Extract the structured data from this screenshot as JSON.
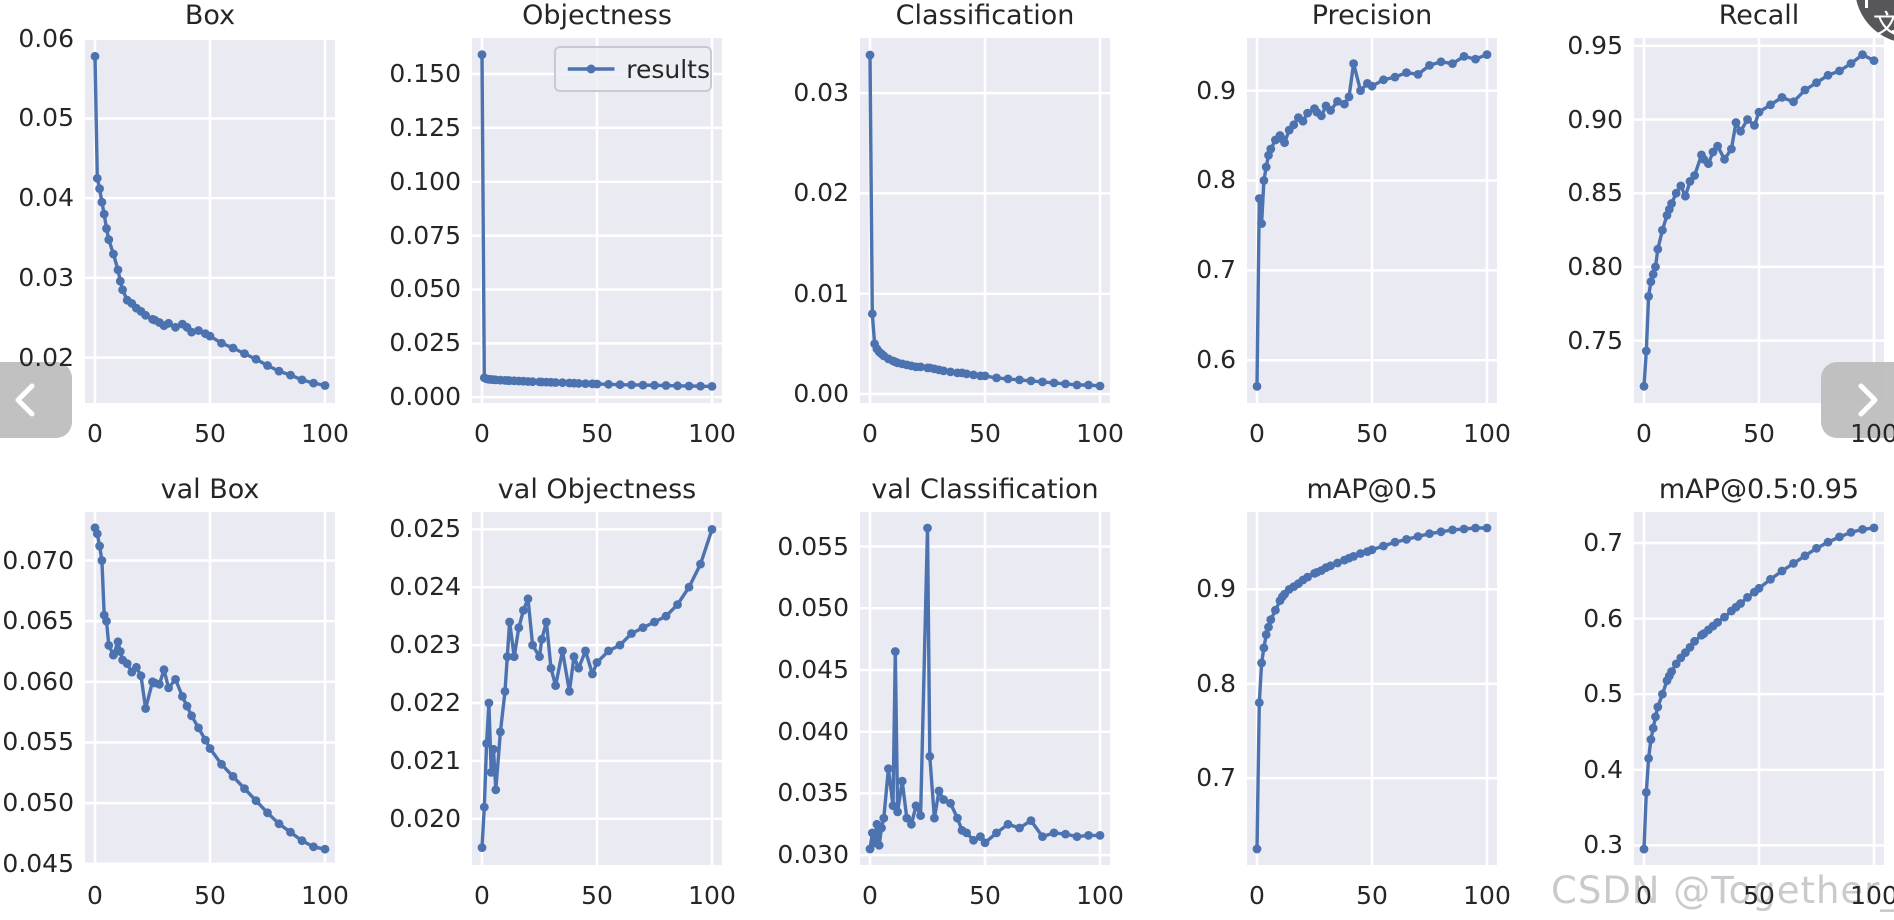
{
  "figure": {
    "kind": "training-results-grid",
    "rows": 2,
    "cols": 5
  },
  "colors": {
    "line": "#4c72b0",
    "plot_bg": "#eaeaf2",
    "grid": "#ffffff",
    "text": "#262626",
    "watermark": "#c1c1c4",
    "nav_bg": "#bcbcbc",
    "translate_bg": "#57575a"
  },
  "legend": {
    "label": "results"
  },
  "watermark": {
    "text": "CSDN @Together_CZ"
  },
  "nav": {
    "prev": "previous-image",
    "next": "next-image"
  },
  "translate_button": {
    "glyph": "文"
  },
  "chart_data": {
    "type": "line",
    "series_name": "results",
    "x_label_ticks": [
      "0",
      "50",
      "100"
    ],
    "x": [
      0,
      1,
      2,
      3,
      4,
      5,
      6,
      8,
      10,
      11,
      12,
      14,
      16,
      18,
      20,
      22,
      25,
      26,
      28,
      30,
      32,
      35,
      38,
      40,
      42,
      45,
      48,
      50,
      55,
      60,
      65,
      70,
      75,
      80,
      85,
      90,
      95,
      100
    ],
    "xticks": [
      0,
      50,
      100
    ],
    "xlim": [
      -4.35,
      104.35
    ],
    "plots": [
      {
        "title": "Box",
        "row": 0,
        "col": 0,
        "ylim": [
          0.0143,
          0.0601
        ],
        "yticks": [
          0.02,
          0.03,
          0.04,
          0.05,
          0.06
        ],
        "ytick_labels": [
          "0.02",
          "0.03",
          "0.04",
          "0.05",
          "0.06"
        ],
        "values": [
          0.0578,
          0.0425,
          0.0412,
          0.0395,
          0.038,
          0.0362,
          0.0348,
          0.033,
          0.031,
          0.0296,
          0.0285,
          0.0272,
          0.0268,
          0.0262,
          0.0258,
          0.0253,
          0.0248,
          0.0247,
          0.0244,
          0.024,
          0.0243,
          0.0238,
          0.0242,
          0.0238,
          0.0232,
          0.0234,
          0.023,
          0.0227,
          0.0218,
          0.0212,
          0.0205,
          0.0198,
          0.019,
          0.0183,
          0.0178,
          0.0172,
          0.0168,
          0.0165
        ]
      },
      {
        "title": "Objectness",
        "row": 0,
        "col": 1,
        "show_legend": true,
        "ylim": [
          -0.0027,
          0.1667
        ],
        "yticks": [
          0.0,
          0.025,
          0.05,
          0.075,
          0.1,
          0.125,
          0.15
        ],
        "ytick_labels": [
          "0.000",
          "0.025",
          "0.050",
          "0.075",
          "0.100",
          "0.125",
          "0.150"
        ],
        "values": [
          0.159,
          0.009,
          0.0085,
          0.0083,
          0.0082,
          0.0081,
          0.008,
          0.0079,
          0.0078,
          0.00775,
          0.0077,
          0.0076,
          0.0075,
          0.0074,
          0.0073,
          0.0072,
          0.0071,
          0.00705,
          0.007,
          0.0069,
          0.0068,
          0.0067,
          0.0066,
          0.0065,
          0.0064,
          0.0063,
          0.0062,
          0.0061,
          0.006,
          0.0058,
          0.0057,
          0.0056,
          0.0055,
          0.0054,
          0.0053,
          0.0052,
          0.0051,
          0.005
        ]
      },
      {
        "title": "Classification",
        "row": 0,
        "col": 2,
        "ylim": [
          -0.0009,
          0.0355
        ],
        "yticks": [
          0.0,
          0.01,
          0.02,
          0.03
        ],
        "ytick_labels": [
          "0.00",
          "0.01",
          "0.02",
          "0.03"
        ],
        "values": [
          0.0338,
          0.008,
          0.005,
          0.0045,
          0.0042,
          0.004,
          0.0038,
          0.0035,
          0.0033,
          0.0032,
          0.0031,
          0.003,
          0.0029,
          0.0028,
          0.0027,
          0.0027,
          0.0026,
          0.0026,
          0.0025,
          0.0024,
          0.0023,
          0.0022,
          0.0021,
          0.0021,
          0.002,
          0.0019,
          0.0018,
          0.0018,
          0.0016,
          0.0015,
          0.0014,
          0.0013,
          0.0012,
          0.0011,
          0.001,
          0.0009,
          0.0009,
          0.0008
        ]
      },
      {
        "title": "Precision",
        "row": 0,
        "col": 3,
        "ylim": [
          0.5525,
          0.9585
        ],
        "yticks": [
          0.6,
          0.7,
          0.8,
          0.9
        ],
        "ytick_labels": [
          "0.6",
          "0.7",
          "0.8",
          "0.9"
        ],
        "values": [
          0.571,
          0.78,
          0.752,
          0.8,
          0.815,
          0.828,
          0.835,
          0.845,
          0.85,
          0.846,
          0.842,
          0.856,
          0.862,
          0.87,
          0.866,
          0.875,
          0.88,
          0.876,
          0.872,
          0.883,
          0.878,
          0.888,
          0.885,
          0.893,
          0.93,
          0.9,
          0.908,
          0.905,
          0.912,
          0.915,
          0.92,
          0.918,
          0.928,
          0.932,
          0.93,
          0.938,
          0.935,
          0.94
        ]
      },
      {
        "title": "Recall",
        "row": 0,
        "col": 4,
        "ylim": [
          0.7077,
          0.9553
        ],
        "yticks": [
          0.75,
          0.8,
          0.85,
          0.9,
          0.95
        ],
        "ytick_labels": [
          "0.75",
          "0.80",
          "0.85",
          "0.90",
          "0.95"
        ],
        "values": [
          0.719,
          0.743,
          0.78,
          0.79,
          0.795,
          0.8,
          0.812,
          0.825,
          0.835,
          0.839,
          0.843,
          0.85,
          0.855,
          0.848,
          0.858,
          0.862,
          0.876,
          0.873,
          0.87,
          0.878,
          0.882,
          0.873,
          0.88,
          0.898,
          0.892,
          0.9,
          0.896,
          0.905,
          0.91,
          0.915,
          0.912,
          0.92,
          0.925,
          0.93,
          0.933,
          0.938,
          0.944,
          0.94
        ]
      },
      {
        "title": "val Box",
        "row": 1,
        "col": 0,
        "ylim": [
          0.0449,
          0.074
        ],
        "yticks": [
          0.045,
          0.05,
          0.055,
          0.06,
          0.065,
          0.07
        ],
        "ytick_labels": [
          "0.045",
          "0.050",
          "0.055",
          "0.060",
          "0.065",
          "0.070"
        ],
        "values": [
          0.0727,
          0.0722,
          0.0712,
          0.07,
          0.0655,
          0.065,
          0.063,
          0.0622,
          0.0633,
          0.0625,
          0.0618,
          0.0615,
          0.0608,
          0.0612,
          0.0605,
          0.0578,
          0.06,
          0.0599,
          0.0598,
          0.061,
          0.0595,
          0.0602,
          0.0588,
          0.058,
          0.0572,
          0.0562,
          0.0552,
          0.0545,
          0.0532,
          0.0522,
          0.0512,
          0.0502,
          0.0492,
          0.0483,
          0.0476,
          0.0469,
          0.0464,
          0.0462
        ]
      },
      {
        "title": "val Objectness",
        "row": 1,
        "col": 1,
        "ylim": [
          0.0192,
          0.0253
        ],
        "yticks": [
          0.02,
          0.021,
          0.022,
          0.023,
          0.024,
          0.025
        ],
        "ytick_labels": [
          "0.020",
          "0.021",
          "0.022",
          "0.023",
          "0.024",
          "0.025"
        ],
        "values": [
          0.0195,
          0.0202,
          0.0213,
          0.022,
          0.0208,
          0.0212,
          0.0205,
          0.0215,
          0.0222,
          0.0228,
          0.0234,
          0.0228,
          0.0233,
          0.0236,
          0.0238,
          0.023,
          0.0228,
          0.0231,
          0.0234,
          0.0226,
          0.0223,
          0.0229,
          0.0222,
          0.0228,
          0.0226,
          0.0229,
          0.0225,
          0.0227,
          0.0229,
          0.023,
          0.0232,
          0.0233,
          0.0234,
          0.0235,
          0.0237,
          0.024,
          0.0244,
          0.025
        ]
      },
      {
        "title": "val Classification",
        "row": 1,
        "col": 2,
        "ylim": [
          0.0292,
          0.0578
        ],
        "yticks": [
          0.03,
          0.035,
          0.04,
          0.045,
          0.05,
          0.055
        ],
        "ytick_labels": [
          "0.030",
          "0.035",
          "0.040",
          "0.045",
          "0.050",
          "0.055"
        ],
        "values": [
          0.0305,
          0.0318,
          0.031,
          0.0325,
          0.0308,
          0.0322,
          0.033,
          0.037,
          0.034,
          0.0465,
          0.0335,
          0.036,
          0.033,
          0.0325,
          0.034,
          0.0332,
          0.0565,
          0.038,
          0.033,
          0.0352,
          0.0345,
          0.0342,
          0.033,
          0.032,
          0.0318,
          0.0312,
          0.0315,
          0.031,
          0.0318,
          0.0325,
          0.0322,
          0.0328,
          0.0315,
          0.0318,
          0.0317,
          0.0315,
          0.0316,
          0.0316
        ]
      },
      {
        "title": "mAP@0.5",
        "row": 1,
        "col": 3,
        "ylim": [
          0.608,
          0.982
        ],
        "yticks": [
          0.7,
          0.8,
          0.9
        ],
        "ytick_labels": [
          "0.7",
          "0.8",
          "0.9"
        ],
        "values": [
          0.625,
          0.78,
          0.822,
          0.838,
          0.852,
          0.86,
          0.868,
          0.878,
          0.888,
          0.892,
          0.895,
          0.9,
          0.903,
          0.906,
          0.91,
          0.913,
          0.917,
          0.918,
          0.92,
          0.923,
          0.925,
          0.928,
          0.931,
          0.933,
          0.935,
          0.938,
          0.94,
          0.942,
          0.946,
          0.95,
          0.953,
          0.956,
          0.959,
          0.961,
          0.963,
          0.964,
          0.965,
          0.965
        ]
      },
      {
        "title": "mAP@0.5:0.95",
        "row": 1,
        "col": 4,
        "ylim": [
          0.274,
          0.741
        ],
        "yticks": [
          0.3,
          0.4,
          0.5,
          0.6,
          0.7
        ],
        "ytick_labels": [
          "0.3",
          "0.4",
          "0.5",
          "0.6",
          "0.7"
        ],
        "values": [
          0.295,
          0.37,
          0.415,
          0.44,
          0.455,
          0.47,
          0.483,
          0.5,
          0.518,
          0.524,
          0.53,
          0.54,
          0.548,
          0.555,
          0.562,
          0.57,
          0.578,
          0.58,
          0.585,
          0.59,
          0.595,
          0.602,
          0.61,
          0.615,
          0.62,
          0.628,
          0.635,
          0.64,
          0.652,
          0.663,
          0.673,
          0.683,
          0.693,
          0.701,
          0.708,
          0.714,
          0.718,
          0.72
        ]
      }
    ]
  }
}
